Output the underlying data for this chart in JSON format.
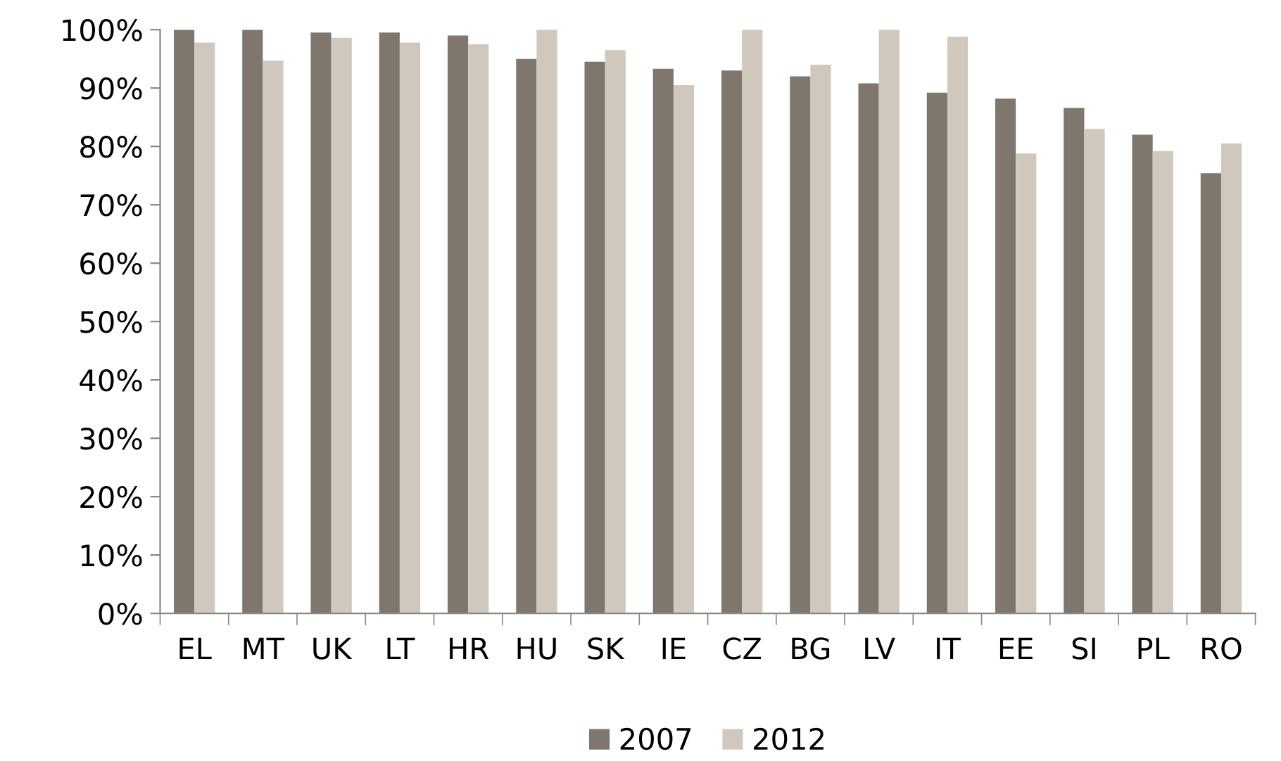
{
  "chart_data": {
    "type": "bar",
    "categories": [
      "EL",
      "MT",
      "UK",
      "LT",
      "HR",
      "HU",
      "SK",
      "IE",
      "CZ",
      "BG",
      "LV",
      "IT",
      "EE",
      "SI",
      "PL",
      "RO"
    ],
    "series": [
      {
        "name": "2007",
        "color": "#7f776d",
        "values": [
          100,
          100,
          99.5,
          99.5,
          99,
          95,
          94.5,
          93.3,
          93,
          92,
          90.8,
          89.2,
          88.2,
          86.6,
          82,
          75.4
        ]
      },
      {
        "name": "2012",
        "color": "#d0c8bc",
        "values": [
          97.8,
          94.7,
          98.6,
          97.8,
          97.5,
          100,
          96.5,
          90.5,
          100,
          94,
          100,
          98.8,
          78.8,
          83,
          79.2,
          80.5
        ]
      }
    ],
    "ylim": [
      0,
      100
    ],
    "yticks": [
      {
        "value": 0,
        "label": "0%"
      },
      {
        "value": 10,
        "label": "10%"
      },
      {
        "value": 20,
        "label": "20%"
      },
      {
        "value": 30,
        "label": "30%"
      },
      {
        "value": 40,
        "label": "40%"
      },
      {
        "value": 50,
        "label": "50%"
      },
      {
        "value": 60,
        "label": "60%"
      },
      {
        "value": 70,
        "label": "70%"
      },
      {
        "value": 80,
        "label": "80%"
      },
      {
        "value": 90,
        "label": "90%"
      },
      {
        "value": 100,
        "label": "100%"
      }
    ],
    "grid": false,
    "legend": "bottom"
  }
}
